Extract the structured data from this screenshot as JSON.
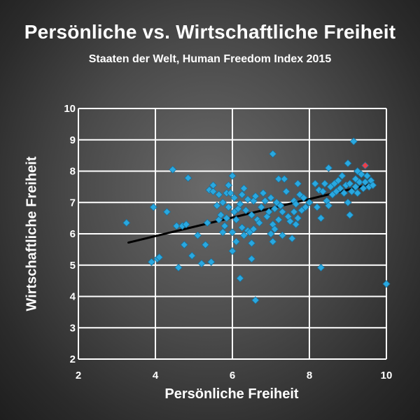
{
  "chart_data": {
    "type": "scatter",
    "title": "Persönliche vs. Wirtschaftliche Freiheit",
    "subtitle": "Staaten der Welt, Human Freedom Index 2015",
    "xlabel": "Persönliche Freiheit",
    "ylabel": "Wirtschaftliche Freiheit",
    "xlim": [
      2,
      10
    ],
    "ylim": [
      2,
      10
    ],
    "xticks": [
      2,
      4,
      6,
      8,
      10
    ],
    "yticks": [
      2,
      3,
      4,
      5,
      6,
      7,
      8,
      9,
      10
    ],
    "grid": true,
    "legend": "none",
    "point_color": "#29a8e0",
    "highlight_color": "#e8404a",
    "trend_color": "#000000",
    "points": [
      [
        3.25,
        6.35
      ],
      [
        3.9,
        5.1
      ],
      [
        3.95,
        6.85
      ],
      [
        4.05,
        5.2
      ],
      [
        4.1,
        5.25
      ],
      [
        4.3,
        6.7
      ],
      [
        4.45,
        8.05
      ],
      [
        4.55,
        6.25
      ],
      [
        4.6,
        4.92
      ],
      [
        4.7,
        6.25
      ],
      [
        4.75,
        5.65
      ],
      [
        4.8,
        6.3
      ],
      [
        4.85,
        7.78
      ],
      [
        4.95,
        5.3
      ],
      [
        5.1,
        5.95
      ],
      [
        5.2,
        5.05
      ],
      [
        5.3,
        5.65
      ],
      [
        5.35,
        6.35
      ],
      [
        5.4,
        7.4
      ],
      [
        5.45,
        5.1
      ],
      [
        5.5,
        7.35
      ],
      [
        5.5,
        7.55
      ],
      [
        5.6,
        6.9
      ],
      [
        5.65,
        7.25
      ],
      [
        5.65,
        6.45
      ],
      [
        5.7,
        6.6
      ],
      [
        5.75,
        6.05
      ],
      [
        5.75,
        7.0
      ],
      [
        5.8,
        6.25
      ],
      [
        5.85,
        7.3
      ],
      [
        5.85,
        6.5
      ],
      [
        5.9,
        7.55
      ],
      [
        5.9,
        6.85
      ],
      [
        5.95,
        7.3
      ],
      [
        6.0,
        7.85
      ],
      [
        6.0,
        6.05
      ],
      [
        6.0,
        5.45
      ],
      [
        6.05,
        7.15
      ],
      [
        6.05,
        6.7
      ],
      [
        6.1,
        6.45
      ],
      [
        6.1,
        5.75
      ],
      [
        6.15,
        6.8
      ],
      [
        6.2,
        6.95
      ],
      [
        6.2,
        4.58
      ],
      [
        6.25,
        7.25
      ],
      [
        6.25,
        6.2
      ],
      [
        6.3,
        7.45
      ],
      [
        6.3,
        5.95
      ],
      [
        6.35,
        6.75
      ],
      [
        6.4,
        6.1
      ],
      [
        6.4,
        7.1
      ],
      [
        6.45,
        6.05
      ],
      [
        6.5,
        6.6
      ],
      [
        6.5,
        5.7
      ],
      [
        6.55,
        7.05
      ],
      [
        6.55,
        6.15
      ],
      [
        6.5,
        5.2
      ],
      [
        6.6,
        3.88
      ],
      [
        6.6,
        7.2
      ],
      [
        6.65,
        6.45
      ],
      [
        6.7,
        6.35
      ],
      [
        6.75,
        6.85
      ],
      [
        6.8,
        7.3
      ],
      [
        6.85,
        7.05
      ],
      [
        6.9,
        6.55
      ],
      [
        6.95,
        6.7
      ],
      [
        7.0,
        7.15
      ],
      [
        7.0,
        6.0
      ],
      [
        7.05,
        6.3
      ],
      [
        7.05,
        5.75
      ],
      [
        7.05,
        8.55
      ],
      [
        7.1,
        6.8
      ],
      [
        7.1,
        6.15
      ],
      [
        7.15,
        7.0
      ],
      [
        7.2,
        7.75
      ],
      [
        7.2,
        6.45
      ],
      [
        7.25,
        6.9
      ],
      [
        7.3,
        6.7
      ],
      [
        7.3,
        5.95
      ],
      [
        7.35,
        7.75
      ],
      [
        7.4,
        7.35
      ],
      [
        7.45,
        6.55
      ],
      [
        7.5,
        6.4
      ],
      [
        7.55,
        5.85
      ],
      [
        7.6,
        7.05
      ],
      [
        7.6,
        6.7
      ],
      [
        7.65,
        6.3
      ],
      [
        7.65,
        6.95
      ],
      [
        7.7,
        7.6
      ],
      [
        7.7,
        6.5
      ],
      [
        7.75,
        7.25
      ],
      [
        7.8,
        6.75
      ],
      [
        7.85,
        7.15
      ],
      [
        7.9,
        6.85
      ],
      [
        8.0,
        7.0
      ],
      [
        8.15,
        7.6
      ],
      [
        8.2,
        6.85
      ],
      [
        8.25,
        7.4
      ],
      [
        8.3,
        6.5
      ],
      [
        8.3,
        4.92
      ],
      [
        8.35,
        7.35
      ],
      [
        8.4,
        7.6
      ],
      [
        8.45,
        7.05
      ],
      [
        8.5,
        8.1
      ],
      [
        8.5,
        6.9
      ],
      [
        8.55,
        7.5
      ],
      [
        8.6,
        7.25
      ],
      [
        8.65,
        7.6
      ],
      [
        8.7,
        7.35
      ],
      [
        8.75,
        7.7
      ],
      [
        8.8,
        7.45
      ],
      [
        8.85,
        7.85
      ],
      [
        8.9,
        7.3
      ],
      [
        8.95,
        7.55
      ],
      [
        9.0,
        8.25
      ],
      [
        9.0,
        7.0
      ],
      [
        9.05,
        6.6
      ],
      [
        9.05,
        7.6
      ],
      [
        9.1,
        7.35
      ],
      [
        9.15,
        8.95
      ],
      [
        9.2,
        7.5
      ],
      [
        9.2,
        7.75
      ],
      [
        9.25,
        7.3
      ],
      [
        9.25,
        8.0
      ],
      [
        9.3,
        7.65
      ],
      [
        9.35,
        7.9
      ],
      [
        9.4,
        7.45
      ],
      [
        9.45,
        7.65
      ],
      [
        9.5,
        7.85
      ],
      [
        9.55,
        7.5
      ],
      [
        9.6,
        7.7
      ],
      [
        9.65,
        7.55
      ],
      [
        10.0,
        4.4
      ]
    ],
    "highlight_points": [
      [
        9.45,
        8.18
      ]
    ],
    "trend_line": [
      [
        3.3,
        5.72
      ],
      [
        9.6,
        7.58
      ]
    ]
  }
}
